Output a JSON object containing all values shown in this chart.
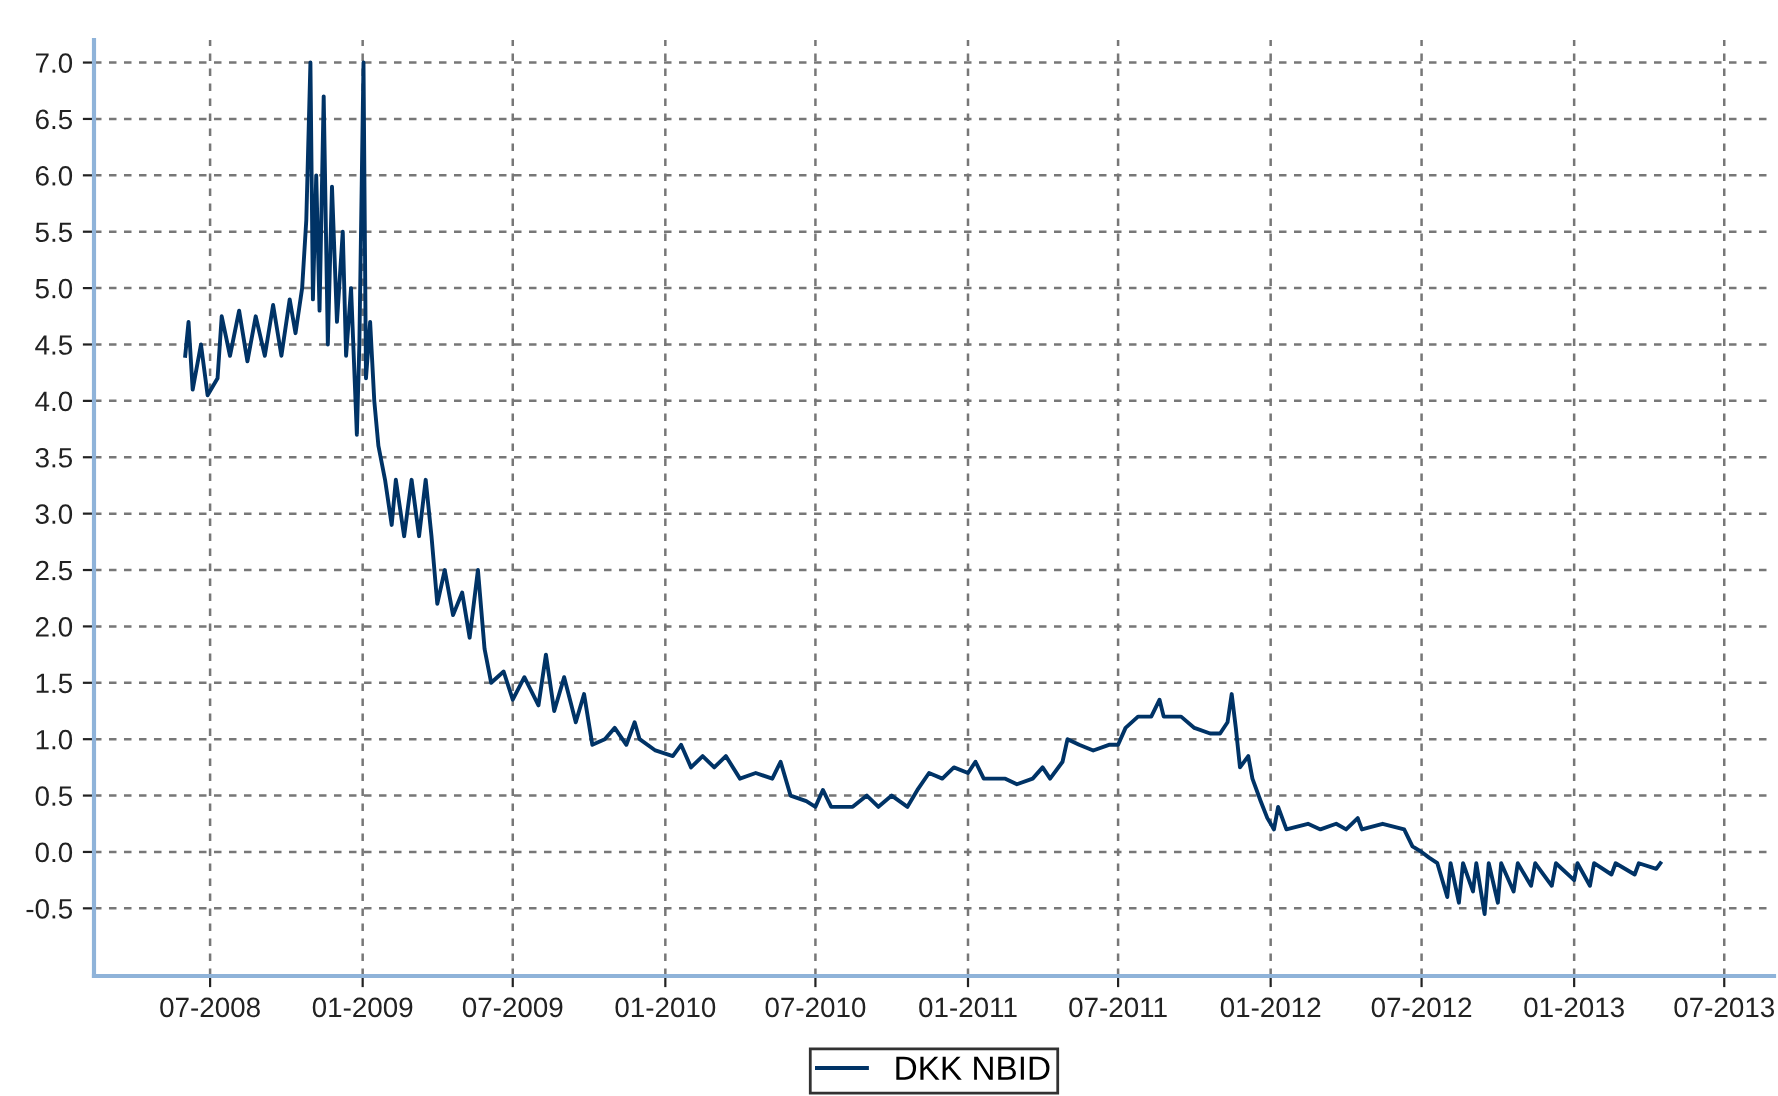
{
  "chart_data": {
    "type": "line",
    "legend": "bottom",
    "grid": true,
    "line_style": "solid",
    "marker": "none",
    "xlim": [
      "2008-02-12",
      "2013-08-30"
    ],
    "xticks": [
      {
        "value": "2008-07-01",
        "label": "07-2008"
      },
      {
        "value": "2009-01-01",
        "label": "01-2009"
      },
      {
        "value": "2009-07-01",
        "label": "07-2009"
      },
      {
        "value": "2010-01-01",
        "label": "01-2010"
      },
      {
        "value": "2010-07-01",
        "label": "07-2010"
      },
      {
        "value": "2011-01-01",
        "label": "01-2011"
      },
      {
        "value": "2011-07-01",
        "label": "07-2011"
      },
      {
        "value": "2012-01-01",
        "label": "01-2012"
      },
      {
        "value": "2012-07-01",
        "label": "07-2012"
      },
      {
        "value": "2013-01-01",
        "label": "01-2013"
      },
      {
        "value": "2013-07-01",
        "label": "07-2013"
      }
    ],
    "ylim": [
      -1.1,
      7.2
    ],
    "yticks": [
      {
        "value": -0.5,
        "label": "-0.5"
      },
      {
        "value": 0,
        "label": "0.0"
      },
      {
        "value": 0.5,
        "label": "0.5"
      },
      {
        "value": 1,
        "label": "1.0"
      },
      {
        "value": 1.5,
        "label": "1.5"
      },
      {
        "value": 2,
        "label": "2.0"
      },
      {
        "value": 2.5,
        "label": "2.5"
      },
      {
        "value": 3,
        "label": "3.0"
      },
      {
        "value": 3.5,
        "label": "3.5"
      },
      {
        "value": 4,
        "label": "4.0"
      },
      {
        "value": 4.5,
        "label": "4.5"
      },
      {
        "value": 5,
        "label": "5.0"
      },
      {
        "value": 5.5,
        "label": "5.5"
      },
      {
        "value": 6,
        "label": "6.0"
      },
      {
        "value": 6.5,
        "label": "6.5"
      },
      {
        "value": 7,
        "label": "7.0"
      }
    ],
    "x": [
      "2008-06-01",
      "2008-06-05",
      "2008-06-10",
      "2008-06-20",
      "2008-06-28",
      "2008-07-10",
      "2008-07-15",
      "2008-07-25",
      "2008-08-05",
      "2008-08-15",
      "2008-08-25",
      "2008-09-05",
      "2008-09-15",
      "2008-09-25",
      "2008-10-05",
      "2008-10-12",
      "2008-10-20",
      "2008-10-25",
      "2008-10-30",
      "2008-11-02",
      "2008-11-06",
      "2008-11-10",
      "2008-11-15",
      "2008-11-20",
      "2008-11-25",
      "2008-12-01",
      "2008-12-08",
      "2008-12-12",
      "2008-12-18",
      "2008-12-25",
      "2008-12-28",
      "2009-01-02",
      "2009-01-05",
      "2009-01-10",
      "2009-01-15",
      "2009-01-20",
      "2009-01-28",
      "2009-02-05",
      "2009-02-10",
      "2009-02-20",
      "2009-03-01",
      "2009-03-10",
      "2009-03-18",
      "2009-03-25",
      "2009-04-01",
      "2009-04-10",
      "2009-04-20",
      "2009-05-01",
      "2009-05-10",
      "2009-05-20",
      "2009-05-28",
      "2009-06-05",
      "2009-06-20",
      "2009-07-01",
      "2009-07-15",
      "2009-08-01",
      "2009-08-10",
      "2009-08-20",
      "2009-09-01",
      "2009-09-15",
      "2009-09-25",
      "2009-10-05",
      "2009-10-20",
      "2009-11-01",
      "2009-11-15",
      "2009-11-25",
      "2009-12-01",
      "2009-12-20",
      "2010-01-10",
      "2010-01-20",
      "2010-02-01",
      "2010-02-15",
      "2010-03-01",
      "2010-03-15",
      "2010-04-01",
      "2010-04-20",
      "2010-05-10",
      "2010-05-20",
      "2010-06-01",
      "2010-06-20",
      "2010-07-01",
      "2010-07-10",
      "2010-07-20",
      "2010-08-15",
      "2010-09-01",
      "2010-09-15",
      "2010-10-01",
      "2010-10-20",
      "2010-11-01",
      "2010-11-15",
      "2010-12-01",
      "2010-12-15",
      "2011-01-01",
      "2011-01-10",
      "2011-01-20",
      "2011-02-15",
      "2011-03-01",
      "2011-03-20",
      "2011-04-01",
      "2011-04-10",
      "2011-04-25",
      "2011-05-01",
      "2011-05-15",
      "2011-06-01",
      "2011-06-20",
      "2011-07-01",
      "2011-07-10",
      "2011-07-25",
      "2011-08-10",
      "2011-08-20",
      "2011-08-25",
      "2011-09-15",
      "2011-10-01",
      "2011-10-20",
      "2011-11-01",
      "2011-11-10",
      "2011-11-15",
      "2011-11-20",
      "2011-11-25",
      "2011-12-05",
      "2011-12-10",
      "2011-12-20",
      "2011-12-28",
      "2012-01-05",
      "2012-01-10",
      "2012-01-20",
      "2012-02-15",
      "2012-03-01",
      "2012-03-20",
      "2012-04-01",
      "2012-04-15",
      "2012-04-20",
      "2012-05-15",
      "2012-06-10",
      "2012-06-20",
      "2012-07-01",
      "2012-07-10",
      "2012-07-20",
      "2012-08-01",
      "2012-08-05",
      "2012-08-15",
      "2012-08-20",
      "2012-09-01",
      "2012-09-05",
      "2012-09-15",
      "2012-09-20",
      "2012-10-01",
      "2012-10-05",
      "2012-10-20",
      "2012-10-25",
      "2012-11-10",
      "2012-11-15",
      "2012-12-05",
      "2012-12-10",
      "2013-01-01",
      "2013-01-05",
      "2013-01-20",
      "2013-01-25",
      "2013-02-15",
      "2013-02-20",
      "2013-03-15",
      "2013-03-20",
      "2013-04-10",
      "2013-04-15"
    ],
    "series": [
      {
        "name": "DKK NBID",
        "color": "#003366",
        "values": [
          4.4,
          4.7,
          4.1,
          4.5,
          4.05,
          4.2,
          4.75,
          4.4,
          4.8,
          4.35,
          4.75,
          4.4,
          4.85,
          4.4,
          4.9,
          4.6,
          5.0,
          5.6,
          7.0,
          4.9,
          6.0,
          4.8,
          6.7,
          4.5,
          5.9,
          4.7,
          5.5,
          4.4,
          5.0,
          3.7,
          4.5,
          7.0,
          4.2,
          4.7,
          4.0,
          3.6,
          3.3,
          2.9,
          3.3,
          2.8,
          3.3,
          2.8,
          3.3,
          2.8,
          2.2,
          2.5,
          2.1,
          2.3,
          1.9,
          2.5,
          1.8,
          1.5,
          1.6,
          1.35,
          1.55,
          1.3,
          1.75,
          1.25,
          1.55,
          1.15,
          1.4,
          0.95,
          1.0,
          1.1,
          0.95,
          1.15,
          1.0,
          0.9,
          0.85,
          0.95,
          0.75,
          0.85,
          0.75,
          0.85,
          0.65,
          0.7,
          0.65,
          0.8,
          0.5,
          0.45,
          0.4,
          0.55,
          0.4,
          0.4,
          0.5,
          0.4,
          0.5,
          0.4,
          0.55,
          0.7,
          0.65,
          0.75,
          0.7,
          0.8,
          0.65,
          0.65,
          0.6,
          0.65,
          0.75,
          0.65,
          0.8,
          1.0,
          0.95,
          0.9,
          0.95,
          0.95,
          1.1,
          1.2,
          1.2,
          1.35,
          1.2,
          1.2,
          1.1,
          1.05,
          1.05,
          1.15,
          1.4,
          1.1,
          0.75,
          0.85,
          0.65,
          0.45,
          0.3,
          0.2,
          0.4,
          0.2,
          0.25,
          0.2,
          0.25,
          0.2,
          0.3,
          0.2,
          0.25,
          0.2,
          0.05,
          0.0,
          -0.05,
          -0.1,
          -0.4,
          -0.1,
          -0.45,
          -0.1,
          -0.35,
          -0.1,
          -0.55,
          -0.1,
          -0.45,
          -0.1,
          -0.35,
          -0.1,
          -0.3,
          -0.1,
          -0.3,
          -0.1,
          -0.25,
          -0.1,
          -0.3,
          -0.1,
          -0.2,
          -0.1,
          -0.2,
          -0.1,
          -0.15,
          -0.1
        ]
      }
    ]
  }
}
